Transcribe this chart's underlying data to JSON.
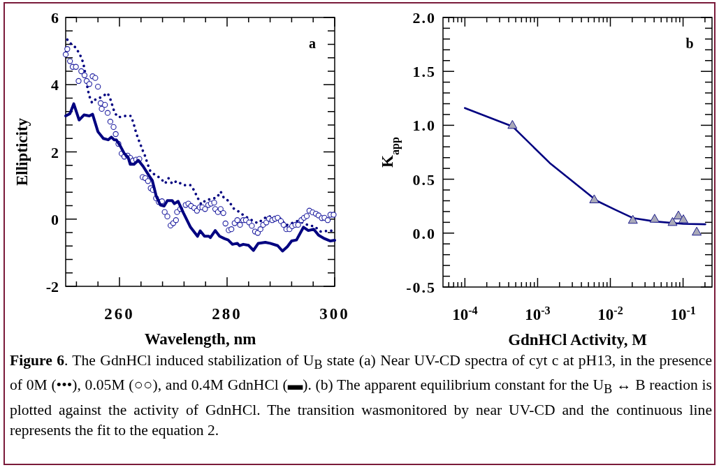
{
  "chart_data": [
    {
      "type": "line",
      "xlabel": "Wavelength, nm",
      "ylabel": "Ellipticity",
      "xlim": [
        250,
        300
      ],
      "ylim": [
        -2,
        6
      ],
      "xticks": [
        {
          "value": 252,
          "label": null
        },
        {
          "value": 256,
          "label": null
        },
        260,
        {
          "value": 264,
          "label": null
        },
        {
          "value": 268,
          "label": null
        },
        {
          "value": 272,
          "label": null
        },
        {
          "value": 276,
          "label": null
        },
        280,
        {
          "value": 284,
          "label": null
        },
        {
          "value": 288,
          "label": null
        },
        {
          "value": 292,
          "label": null
        },
        {
          "value": 296,
          "label": null
        },
        300
      ],
      "yticks": [
        -2,
        {
          "value": -1.6,
          "label": null
        },
        {
          "value": -1.2,
          "label": null
        },
        {
          "value": -0.8,
          "label": null
        },
        {
          "value": -0.4,
          "label": null
        },
        0,
        {
          "value": 0.4,
          "label": null
        },
        {
          "value": 0.8,
          "label": null
        },
        {
          "value": 1.2,
          "label": null
        },
        {
          "value": 1.6,
          "label": null
        },
        2,
        {
          "value": 2.4,
          "label": null
        },
        {
          "value": 2.8,
          "label": null
        },
        {
          "value": 3.2,
          "label": null
        },
        {
          "value": 3.6,
          "label": null
        },
        4,
        {
          "value": 4.4,
          "label": null
        },
        {
          "value": 4.8,
          "label": null
        },
        {
          "value": 5.2,
          "label": null
        },
        {
          "value": 5.6,
          "label": null
        },
        6
      ],
      "annotations": [
        "a",
        "Figure 6. The GdnHCl induced stabilization of U$_{B}$ state (a) Near UV-CD spectra of cyt c at pH13, in the presence of  0M (•••), 0.05M (○○), and 0.4M GdnHCl (▬). (b) The apparent equilibrium constant for the U$_{B}$ ↔ B reaction is plotted against the activity of GdnHCl. The transition wasmonitored by near UV-CD and the continuous line represents the fit to the equation 2."
      ],
      "series": [
        {
          "line_style": "dotted",
          "color": "#000080",
          "x": [
            250.3,
            251,
            251.9,
            252.7,
            253.2,
            253.5,
            254.1,
            254.4,
            254.9,
            255.6,
            256.5,
            257.8,
            258.3,
            258.7,
            259.1,
            259.8,
            261.1,
            262.1,
            262.6,
            262.9,
            263.3,
            263.8,
            264.3,
            264.8,
            265.2,
            265.7,
            266.3,
            267.6,
            268.5,
            269.1,
            269.8,
            270.6,
            271.9,
            273.2,
            273.9,
            274.5,
            275.2,
            276,
            278.1,
            278.8,
            279.4,
            280.4,
            281.1,
            282.1,
            283.1,
            284.8,
            285.7,
            287.5,
            290,
            290.9,
            293.2,
            295.2,
            296.2,
            297.4,
            298.7,
            299.9
          ],
          "values": [
            5.34,
            5.21,
            5.1,
            4.88,
            4.68,
            4.47,
            3.86,
            3.66,
            3.46,
            3.57,
            3.62,
            3.75,
            3.57,
            3.37,
            3.16,
            3.03,
            3.07,
            3.07,
            2.87,
            2.67,
            2.47,
            2.26,
            2.05,
            1.86,
            1.65,
            1.44,
            1.35,
            1.22,
            1.06,
            1.22,
            1.05,
            1.13,
            1.01,
            1.01,
            0.85,
            0.64,
            0.44,
            0.56,
            0.64,
            0.82,
            0.63,
            0.53,
            0.33,
            0.23,
            0.11,
            -0.05,
            -0.12,
            0.09,
            0.01,
            -0.19,
            -0.05,
            -0.19,
            -0.21,
            -0.37,
            -0.35,
            -0.34
          ]
        },
        {
          "type": "scatter",
          "marker": "circle",
          "color": "#1f1fa0",
          "x": [
            250,
            250.3,
            250.8,
            251.3,
            251.9,
            252.4,
            252.9,
            253.5,
            253.9,
            254.4,
            255,
            255.5,
            256,
            256.5,
            256.7,
            257.3,
            257.8,
            258.3,
            258.9,
            259.3,
            259.8,
            260.4,
            260.9,
            261.5,
            262,
            262.5,
            263.1,
            263.7,
            264.3,
            264.8,
            265.3,
            265.8,
            266.2,
            266.8,
            267.3,
            267.9,
            268.4,
            268.9,
            269.5,
            270,
            270.5,
            270.7,
            271.3,
            272.3,
            272.8,
            273.3,
            273.9,
            274.4,
            274.9,
            275.4,
            275.9,
            276.5,
            277,
            277.6,
            277.8,
            278.3,
            278.8,
            279.3,
            279.7,
            280.3,
            280.8,
            281.4,
            281.9,
            282.4,
            283,
            283.5,
            284.1,
            284.6,
            285.2,
            285.7,
            286.2,
            286.7,
            287.3,
            287.8,
            288.4,
            288.9,
            289.4,
            290,
            290.5,
            291,
            291.6,
            292.1,
            292.7,
            293.2,
            293.8,
            294.3,
            294.8,
            295.3,
            295.9,
            296.5,
            297,
            297.6,
            298.1,
            298.7,
            299.2,
            299.8
          ],
          "values": [
            4.9,
            5.06,
            4.7,
            4.53,
            4.53,
            4.11,
            4.4,
            4.28,
            4.11,
            4.02,
            4.25,
            4.2,
            3.94,
            3.45,
            3.28,
            3.4,
            3.16,
            2.9,
            2.74,
            2.53,
            2.24,
            1.95,
            1.86,
            1.89,
            1.82,
            1.74,
            1.77,
            1.79,
            1.25,
            1.22,
            1.13,
            0.92,
            0.87,
            0.62,
            0.51,
            0.53,
            0.21,
            0.08,
            -0.19,
            -0.12,
            -0.03,
            0.21,
            0.3,
            0.42,
            0.46,
            0.39,
            0.33,
            0.25,
            0.35,
            0.35,
            0.3,
            0.42,
            0.46,
            0.49,
            0.3,
            0.21,
            0.3,
            0.18,
            -0.13,
            -0.33,
            -0.3,
            -0.12,
            -0.03,
            -0.17,
            -0.03,
            -0.03,
            -0.1,
            -0.2,
            -0.37,
            -0.41,
            -0.3,
            -0.17,
            -0.1,
            0.01,
            -0.03,
            0.01,
            0.04,
            -0.06,
            -0.17,
            -0.3,
            -0.3,
            -0.21,
            -0.17,
            -0.17,
            -0.03,
            0.04,
            0.09,
            0.25,
            0.2,
            0.16,
            0.11,
            0.03,
            0.04,
            -0.03,
            0.13,
            0.13
          ]
        },
        {
          "line_style": "solid",
          "color": "#000080",
          "x": [
            250,
            250.8,
            251.5,
            252.5,
            253.4,
            254.4,
            255,
            256,
            257,
            257.9,
            258.5,
            259,
            259.4,
            260.1,
            260.9,
            261.6,
            262,
            262.7,
            263.5,
            264.4,
            265.5,
            266.1,
            266.8,
            267.6,
            268.3,
            268.9,
            269.8,
            270.2,
            270.9,
            271.9,
            273.2,
            274.5,
            275,
            275.8,
            276.6,
            276.9,
            277.8,
            278.6,
            279.5,
            280.2,
            281,
            281.9,
            282.3,
            283,
            284,
            284.9,
            285.8,
            287.1,
            288,
            289.4,
            290.3,
            291.2,
            292,
            292.9,
            294.2,
            295.1,
            296.1,
            297,
            298.1,
            299.2,
            300
          ],
          "values": [
            3.07,
            3.14,
            3.43,
            2.95,
            3.1,
            3.07,
            3.12,
            2.6,
            2.4,
            2.36,
            2.44,
            2.36,
            2.36,
            2.19,
            1.95,
            1.84,
            1.63,
            1.63,
            1.75,
            1.57,
            1.29,
            1.15,
            0.7,
            0.42,
            0.39,
            0.55,
            0.55,
            0.46,
            0.53,
            0.18,
            -0.24,
            -0.51,
            -0.35,
            -0.51,
            -0.51,
            -0.55,
            -0.34,
            -0.51,
            -0.58,
            -0.62,
            -0.75,
            -0.72,
            -0.79,
            -0.75,
            -0.78,
            -0.93,
            -0.72,
            -0.69,
            -0.72,
            -0.79,
            -0.95,
            -0.82,
            -0.65,
            -0.62,
            -0.24,
            -0.34,
            -0.3,
            -0.48,
            -0.58,
            -0.65,
            -0.63
          ]
        }
      ]
    },
    {
      "type": "scatter",
      "log": "x",
      "xlabel": "GdnHCl Activity, M",
      "ylabel": "K$_{app}$",
      "xlim": [
        5e-05,
        0.25
      ],
      "ylim": [
        -0.5,
        2
      ],
      "xticks": [
        {
          "value": 6e-05,
          "label": null
        },
        {
          "value": 7e-05,
          "label": null
        },
        {
          "value": 8e-05,
          "label": null
        },
        {
          "value": 9e-05,
          "label": null
        },
        {
          "value": 0.0001,
          "label": "10$^{-4}$"
        },
        {
          "value": 0.0002,
          "label": null
        },
        {
          "value": 0.0003,
          "label": null
        },
        {
          "value": 0.0004,
          "label": null
        },
        {
          "value": 0.0005,
          "label": null
        },
        {
          "value": 0.0006,
          "label": null
        },
        {
          "value": 0.0007,
          "label": null
        },
        {
          "value": 0.0008,
          "label": null
        },
        {
          "value": 0.0009,
          "label": null
        },
        {
          "value": 0.001,
          "label": "10$^{-3}$"
        },
        {
          "value": 0.002,
          "label": null
        },
        {
          "value": 0.003,
          "label": null
        },
        {
          "value": 0.004,
          "label": null
        },
        {
          "value": 0.005,
          "label": null
        },
        {
          "value": 0.006,
          "label": null
        },
        {
          "value": 0.007,
          "label": null
        },
        {
          "value": 0.008,
          "label": null
        },
        {
          "value": 0.009,
          "label": null
        },
        {
          "value": 0.01,
          "label": "10$^{-2}$"
        },
        {
          "value": 0.02,
          "label": null
        },
        {
          "value": 0.03,
          "label": null
        },
        {
          "value": 0.04,
          "label": null
        },
        {
          "value": 0.05,
          "label": null
        },
        {
          "value": 0.06,
          "label": null
        },
        {
          "value": 0.07,
          "label": null
        },
        {
          "value": 0.08,
          "label": null
        },
        {
          "value": 0.09,
          "label": null
        },
        {
          "value": 0.1,
          "label": "10$^{-1}$"
        },
        {
          "value": 0.2,
          "label": null
        }
      ],
      "yticks": [
        {
          "value": -0.5,
          "label": "-0.5"
        },
        {
          "value": -0.4,
          "label": null
        },
        {
          "value": -0.3,
          "label": null
        },
        {
          "value": -0.2,
          "label": null
        },
        {
          "value": -0.1,
          "label": null
        },
        {
          "value": 0,
          "label": "0.0"
        },
        {
          "value": 0.1,
          "label": null
        },
        {
          "value": 0.2,
          "label": null
        },
        {
          "value": 0.3,
          "label": null
        },
        {
          "value": 0.4,
          "label": null
        },
        {
          "value": 0.5,
          "label": "0.5"
        },
        {
          "value": 0.6,
          "label": null
        },
        {
          "value": 0.7,
          "label": null
        },
        {
          "value": 0.8,
          "label": null
        },
        {
          "value": 0.9,
          "label": null
        },
        {
          "value": 1,
          "label": "1.0"
        },
        {
          "value": 1.1,
          "label": null
        },
        {
          "value": 1.2,
          "label": null
        },
        {
          "value": 1.3,
          "label": null
        },
        {
          "value": 1.4,
          "label": null
        },
        {
          "value": 1.5,
          "label": "1.5"
        },
        {
          "value": 1.6,
          "label": null
        },
        {
          "value": 1.7,
          "label": null
        },
        {
          "value": 1.8,
          "label": null
        },
        {
          "value": 1.9,
          "label": null
        },
        {
          "value": 2,
          "label": "2.0"
        }
      ],
      "annotations": [
        "b"
      ],
      "series": [
        {
          "type": "line",
          "line_style": "solid",
          "color": "#000080",
          "x": [
            0.0001,
            0.00045,
            0.00147,
            0.0065,
            0.0117,
            0.0204,
            0.041,
            0.1,
            0.202
          ],
          "values": [
            1.16,
            0.99,
            0.65,
            0.3,
            0.216,
            0.14,
            0.108,
            0.086,
            0.082
          ]
        },
        {
          "marker": "triangle",
          "color": "#a9a9b8",
          "x": [
            0.00045,
            0.006,
            0.0204,
            0.0406,
            0.0716,
            0.0863,
            0.101,
            0.154
          ],
          "values": [
            1.0,
            0.31,
            0.12,
            0.13,
            0.1,
            0.16,
            0.125,
            0.01
          ]
        }
      ]
    }
  ]
}
